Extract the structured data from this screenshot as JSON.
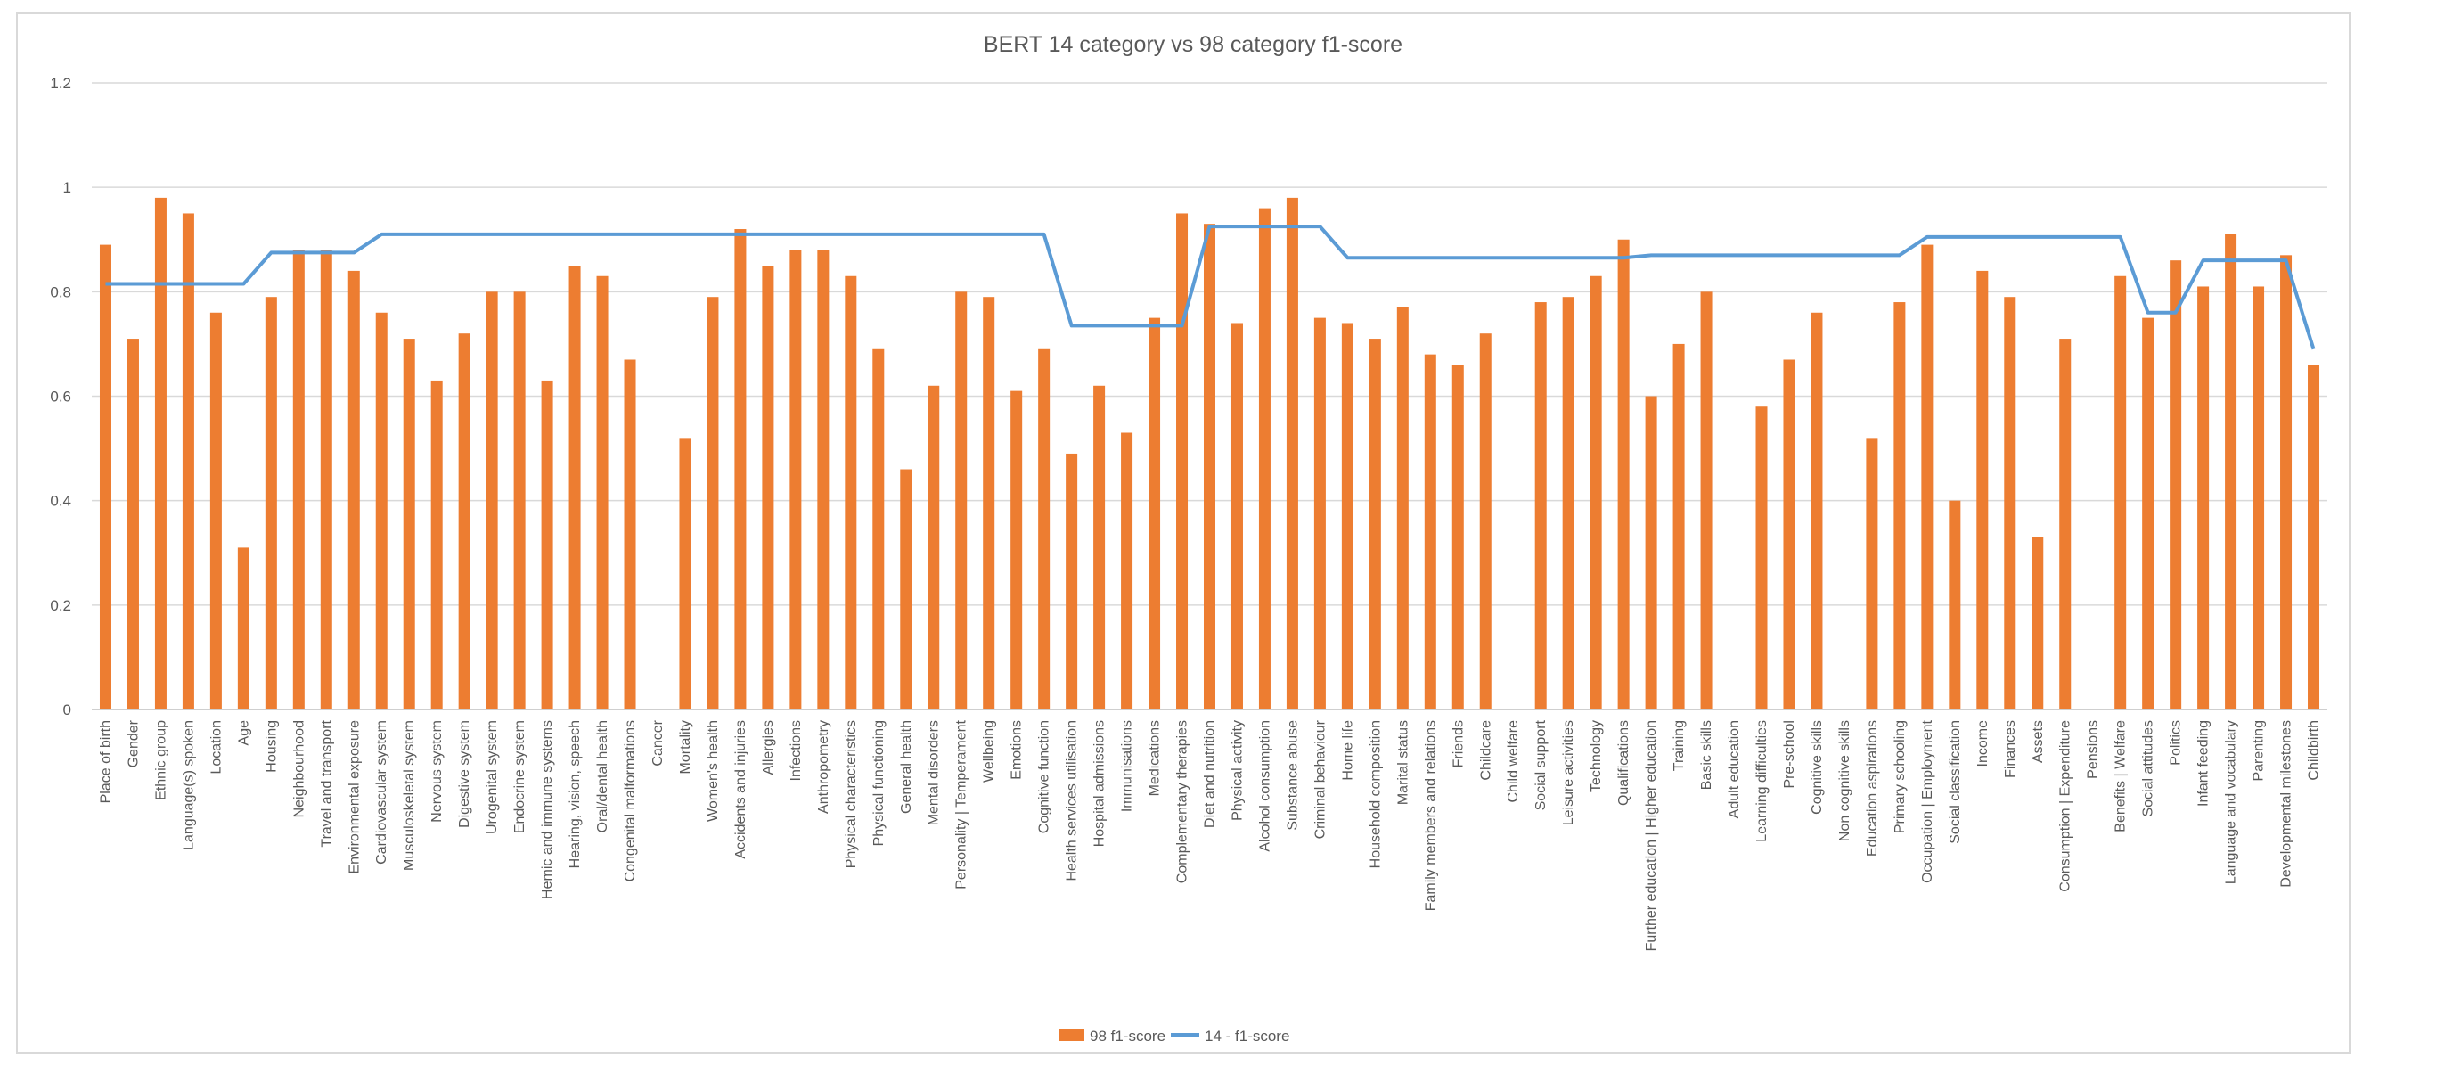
{
  "chart_data": {
    "type": "bar",
    "title": "BERT 14 category vs 98 category f1-score",
    "ylim": [
      0,
      1.2
    ],
    "yticks": [
      "0",
      "0.2",
      "0.4",
      "0.6",
      "0.8",
      "1",
      "1.2"
    ],
    "grid": true,
    "legend_position": "bottom",
    "categories": [
      "Place of birth",
      "Gender",
      "Ethnic group",
      "Language(s) spoken",
      "Location",
      "Age",
      "Housing",
      "Neighbourhood",
      "Travel and transport",
      "Environmental exposure",
      "Cardiovascular system",
      "Musculoskeletal system",
      "Nervous system",
      "Digestive system",
      "Urogenital system",
      "Endocrine system",
      "Hemic and immune systems",
      "Hearing, vision, speech",
      "Oral/dental health",
      "Congenital malformations",
      "Cancer",
      "Mortality",
      "Women's health",
      "Accidents and injuries",
      "Allergies",
      "Infections",
      "Anthropometry",
      "Physical characteristics",
      "Physical functioning",
      "General health",
      "Mental disorders",
      "Personality | Temperament",
      "Wellbeing",
      "Emotions",
      "Cognitive function",
      "Health services utilisation",
      "Hospital admissions",
      "Immunisations",
      "Medications",
      "Complementary therapies",
      "Diet and nutrition",
      "Physical activity",
      "Alcohol consumption",
      "Substance abuse",
      "Criminal behaviour",
      "Home life",
      "Household composition",
      "Marital status",
      "Family members and relations",
      "Friends",
      "Childcare",
      "Child welfare",
      "Social support",
      "Leisure activities",
      "Technology",
      "Qualifications",
      "Further education | Higher education",
      "Training",
      "Basic skills",
      "Adult education",
      "Learning difficulties",
      "Pre-school",
      "Cognitive skills",
      "Non cognitive skills",
      "Education aspirations",
      "Primary schooling",
      "Occupation | Employment",
      "Social classification",
      "Income",
      "Finances",
      "Assets",
      "Consumption | Expenditure",
      "Pensions",
      "Benefits | Welfare",
      "Social attitudes",
      "Politics",
      "Infant feeding",
      "Language and vocabulary",
      "Parenting",
      "Developmental milestones",
      "Childbirth"
    ],
    "series": [
      {
        "name": "98 f1-score",
        "type": "bar",
        "color": "#ED7D31",
        "values": [
          0.89,
          0.71,
          0.98,
          0.95,
          0.76,
          0.31,
          0.79,
          0.88,
          0.88,
          0.84,
          0.76,
          0.71,
          0.63,
          0.72,
          0.8,
          0.8,
          0.63,
          0.85,
          0.83,
          0.67,
          0,
          0.52,
          0.79,
          0.92,
          0.85,
          0.88,
          0.88,
          0.83,
          0.69,
          0.46,
          0.62,
          0.8,
          0.79,
          0.61,
          0.69,
          0.49,
          0.62,
          0.53,
          0.75,
          0.95,
          0.93,
          0.74,
          0.96,
          0.98,
          0.75,
          0.74,
          0.71,
          0.77,
          0.68,
          0.66,
          0.72,
          0,
          0.78,
          0.79,
          0.83,
          0.9,
          0.6,
          0.7,
          0.8,
          0,
          0.58,
          0.67,
          0.76,
          0,
          0.52,
          0.78,
          0.89,
          0.4,
          0.84,
          0.79,
          0.33,
          0.71,
          0,
          0.83,
          0.75,
          0.86,
          0.81,
          0.91,
          0.81,
          0.87,
          0.66
        ]
      },
      {
        "name": "14 - f1-score",
        "type": "line",
        "color": "#5B9BD5",
        "values": [
          0.815,
          0.815,
          0.815,
          0.815,
          0.815,
          0.815,
          0.875,
          0.875,
          0.875,
          0.875,
          0.91,
          0.91,
          0.91,
          0.91,
          0.91,
          0.91,
          0.91,
          0.91,
          0.91,
          0.91,
          0.91,
          0.91,
          0.91,
          0.91,
          0.91,
          0.91,
          0.91,
          0.91,
          0.91,
          0.91,
          0.91,
          0.91,
          0.91,
          0.91,
          0.91,
          0.735,
          0.735,
          0.735,
          0.735,
          0.735,
          0.925,
          0.925,
          0.925,
          0.925,
          0.925,
          0.865,
          0.865,
          0.865,
          0.865,
          0.865,
          0.865,
          0.865,
          0.865,
          0.865,
          0.865,
          0.865,
          0.87,
          0.87,
          0.87,
          0.87,
          0.87,
          0.87,
          0.87,
          0.87,
          0.87,
          0.87,
          0.905,
          0.905,
          0.905,
          0.905,
          0.905,
          0.905,
          0.905,
          0.905,
          0.76,
          0.76,
          0.86,
          0.86,
          0.86,
          0.86,
          0.69
        ]
      }
    ]
  }
}
